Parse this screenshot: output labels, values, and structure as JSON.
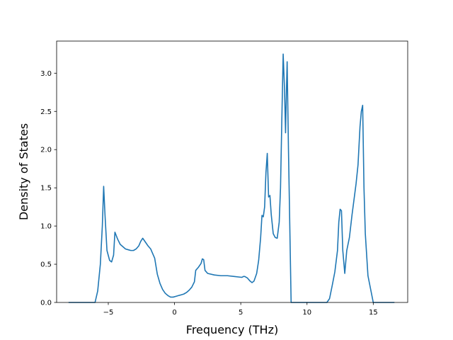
{
  "chart_data": {
    "type": "line",
    "xlabel": "Frequency (THz)",
    "ylabel": "Density of States",
    "xlim": [
      -8.9,
      17.6
    ],
    "ylim": [
      0.0,
      3.42
    ],
    "xticks": [
      -5,
      0,
      5,
      10,
      15
    ],
    "xtick_labels": [
      "−5",
      "0",
      "5",
      "10",
      "15"
    ],
    "yticks": [
      0.0,
      0.5,
      1.0,
      1.5,
      2.0,
      2.5,
      3.0
    ],
    "ytick_labels": [
      "0.0",
      "0.5",
      "1.0",
      "1.5",
      "2.0",
      "2.5",
      "3.0"
    ],
    "grid": false,
    "series": [
      {
        "color": "#1f77b4",
        "x": [
          -8.0,
          -6.0,
          -5.8,
          -5.6,
          -5.45,
          -5.35,
          -5.25,
          -5.1,
          -4.9,
          -4.75,
          -4.6,
          -4.5,
          -4.3,
          -4.1,
          -3.9,
          -3.7,
          -3.5,
          -3.3,
          -3.1,
          -2.9,
          -2.7,
          -2.55,
          -2.4,
          -2.2,
          -2.0,
          -1.8,
          -1.7,
          -1.5,
          -1.3,
          -1.1,
          -0.9,
          -0.7,
          -0.5,
          -0.3,
          -0.1,
          0.1,
          0.3,
          0.5,
          0.7,
          0.9,
          1.1,
          1.3,
          1.5,
          1.6,
          1.8,
          2.0,
          2.1,
          2.2,
          2.3,
          2.5,
          3.0,
          3.5,
          4.0,
          4.5,
          5.0,
          5.1,
          5.2,
          5.3,
          5.5,
          5.7,
          5.85,
          6.0,
          6.2,
          6.35,
          6.5,
          6.6,
          6.7,
          6.8,
          6.9,
          7.0,
          7.1,
          7.2,
          7.3,
          7.45,
          7.6,
          7.75,
          7.9,
          8.0,
          8.1,
          8.2,
          8.3,
          8.38,
          8.45,
          8.5,
          8.6,
          8.8,
          9.5,
          11.5,
          11.7,
          11.9,
          12.1,
          12.3,
          12.4,
          12.5,
          12.6,
          12.7,
          12.85,
          13.0,
          13.2,
          13.4,
          13.55,
          13.7,
          13.85,
          14.0,
          14.1,
          14.2,
          14.3,
          14.4,
          14.6,
          15.0,
          16.6
        ],
        "y": [
          0.0,
          0.0,
          0.15,
          0.5,
          1.0,
          1.52,
          1.15,
          0.68,
          0.55,
          0.53,
          0.62,
          0.92,
          0.83,
          0.76,
          0.73,
          0.7,
          0.69,
          0.68,
          0.68,
          0.7,
          0.74,
          0.8,
          0.84,
          0.79,
          0.74,
          0.7,
          0.66,
          0.58,
          0.37,
          0.25,
          0.17,
          0.12,
          0.09,
          0.07,
          0.07,
          0.08,
          0.09,
          0.1,
          0.11,
          0.13,
          0.16,
          0.2,
          0.27,
          0.42,
          0.46,
          0.51,
          0.57,
          0.56,
          0.42,
          0.38,
          0.36,
          0.35,
          0.35,
          0.34,
          0.33,
          0.33,
          0.34,
          0.34,
          0.32,
          0.28,
          0.26,
          0.28,
          0.38,
          0.55,
          0.85,
          1.14,
          1.12,
          1.25,
          1.7,
          1.95,
          1.38,
          1.4,
          1.15,
          0.9,
          0.85,
          0.84,
          1.05,
          1.5,
          2.4,
          3.25,
          2.8,
          2.22,
          2.8,
          3.15,
          2.0,
          0.0,
          0.0,
          0.0,
          0.05,
          0.22,
          0.4,
          0.68,
          1.05,
          1.22,
          1.2,
          0.68,
          0.38,
          0.68,
          0.85,
          1.15,
          1.35,
          1.55,
          1.8,
          2.3,
          2.5,
          2.58,
          1.5,
          0.9,
          0.35,
          0.0,
          0.0
        ]
      }
    ]
  }
}
